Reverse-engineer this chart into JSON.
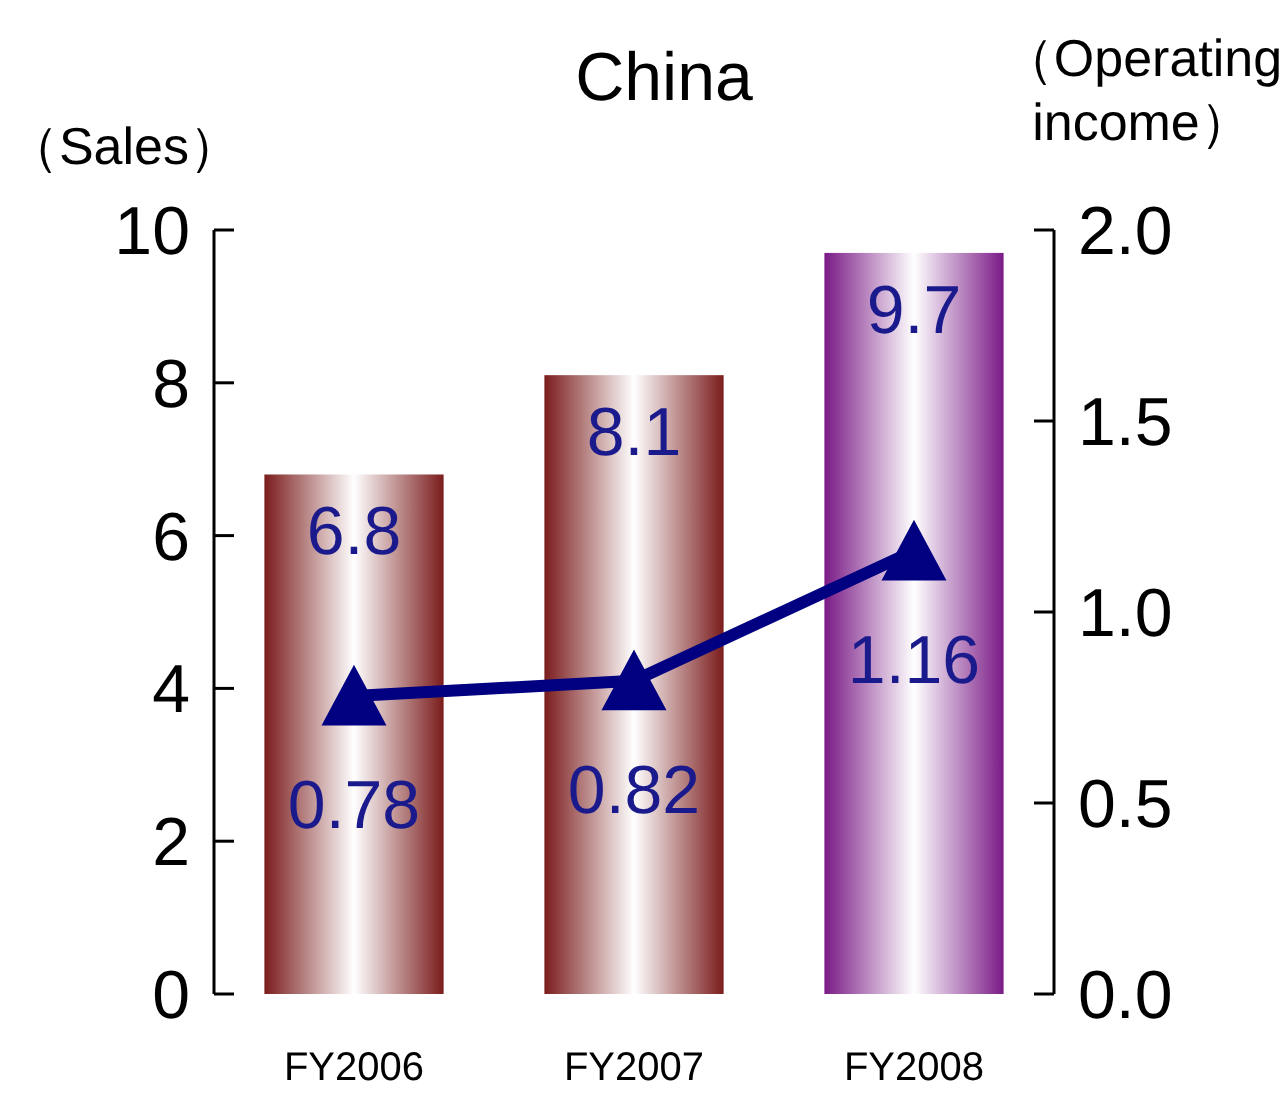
{
  "chart_data": {
    "type": "bar",
    "title": "China",
    "ylabel": "（Sales）",
    "y2label": "（Operating income）",
    "categories": [
      "FY2006",
      "FY2007",
      "FY2008"
    ],
    "series": [
      {
        "values": [
          6.8,
          8.1,
          9.7
        ],
        "colors": [
          "#7b1c1c",
          "#7b1c1c",
          "#7a1a86"
        ]
      },
      {
        "type": "line",
        "axis": "y2",
        "values": [
          0.78,
          0.82,
          1.16
        ],
        "color": "#000080"
      }
    ],
    "ylim": [
      0,
      10
    ],
    "yticks": [
      0,
      2,
      4,
      6,
      8,
      10
    ],
    "y2lim": [
      0,
      2
    ],
    "y2ticks": [
      {
        "value": 0,
        "label": "0.0"
      },
      {
        "value": 0.5,
        "label": "0.5"
      },
      {
        "value": 1,
        "label": "1.0"
      },
      {
        "value": 1.5,
        "label": "1.5"
      },
      {
        "value": 2,
        "label": "2.0"
      }
    ],
    "data_labels": true,
    "marker": "triangle",
    "line_style": "solid",
    "grid": false
  }
}
